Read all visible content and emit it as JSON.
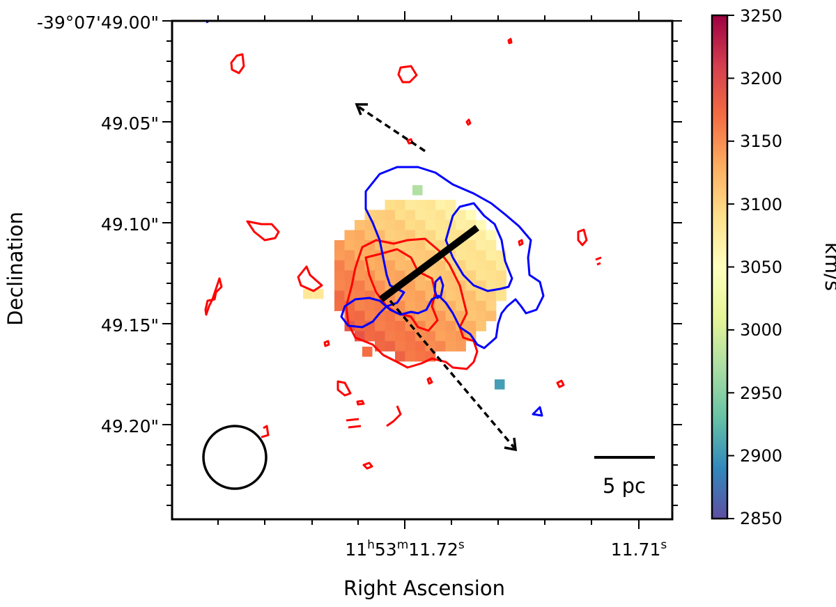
{
  "chart_data": {
    "type": "heatmap",
    "title": "",
    "xlabel": "Right Ascension",
    "ylabel": "Declination",
    "x_ticks": [
      {
        "prefix": "11",
        "h": "h",
        "mid": "53",
        "m": "m",
        "sec": "11.72",
        "s": "s"
      },
      {
        "prefix": "",
        "h": "",
        "mid": "",
        "m": "",
        "sec": "11.71",
        "s": "s"
      }
    ],
    "y_ticks": [
      "-39°07'49.00\"",
      "49.05\"",
      "49.10\"",
      "49.15\"",
      "49.20\""
    ],
    "y_tick_values": [
      49.0,
      49.05,
      49.1,
      49.15,
      49.2
    ],
    "ylim": [
      49.0,
      49.25
    ],
    "colorbar": {
      "label": "km/s",
      "min": 2850,
      "max": 3250,
      "ticks": [
        "3250",
        "3200",
        "3150",
        "3100",
        "3050",
        "3000",
        "2950",
        "2900",
        "2850"
      ],
      "colormap": [
        "#5e4fa2",
        "#3288bd",
        "#66c2a5",
        "#abdda4",
        "#e6f598",
        "#ffffbf",
        "#fee08b",
        "#fdae61",
        "#f46d43",
        "#d53e4f",
        "#9e0142"
      ]
    },
    "contours": {
      "red": "#ff0000",
      "blue": "#0000ff"
    },
    "annotations": {
      "scalebar_label": "5 pc"
    }
  }
}
